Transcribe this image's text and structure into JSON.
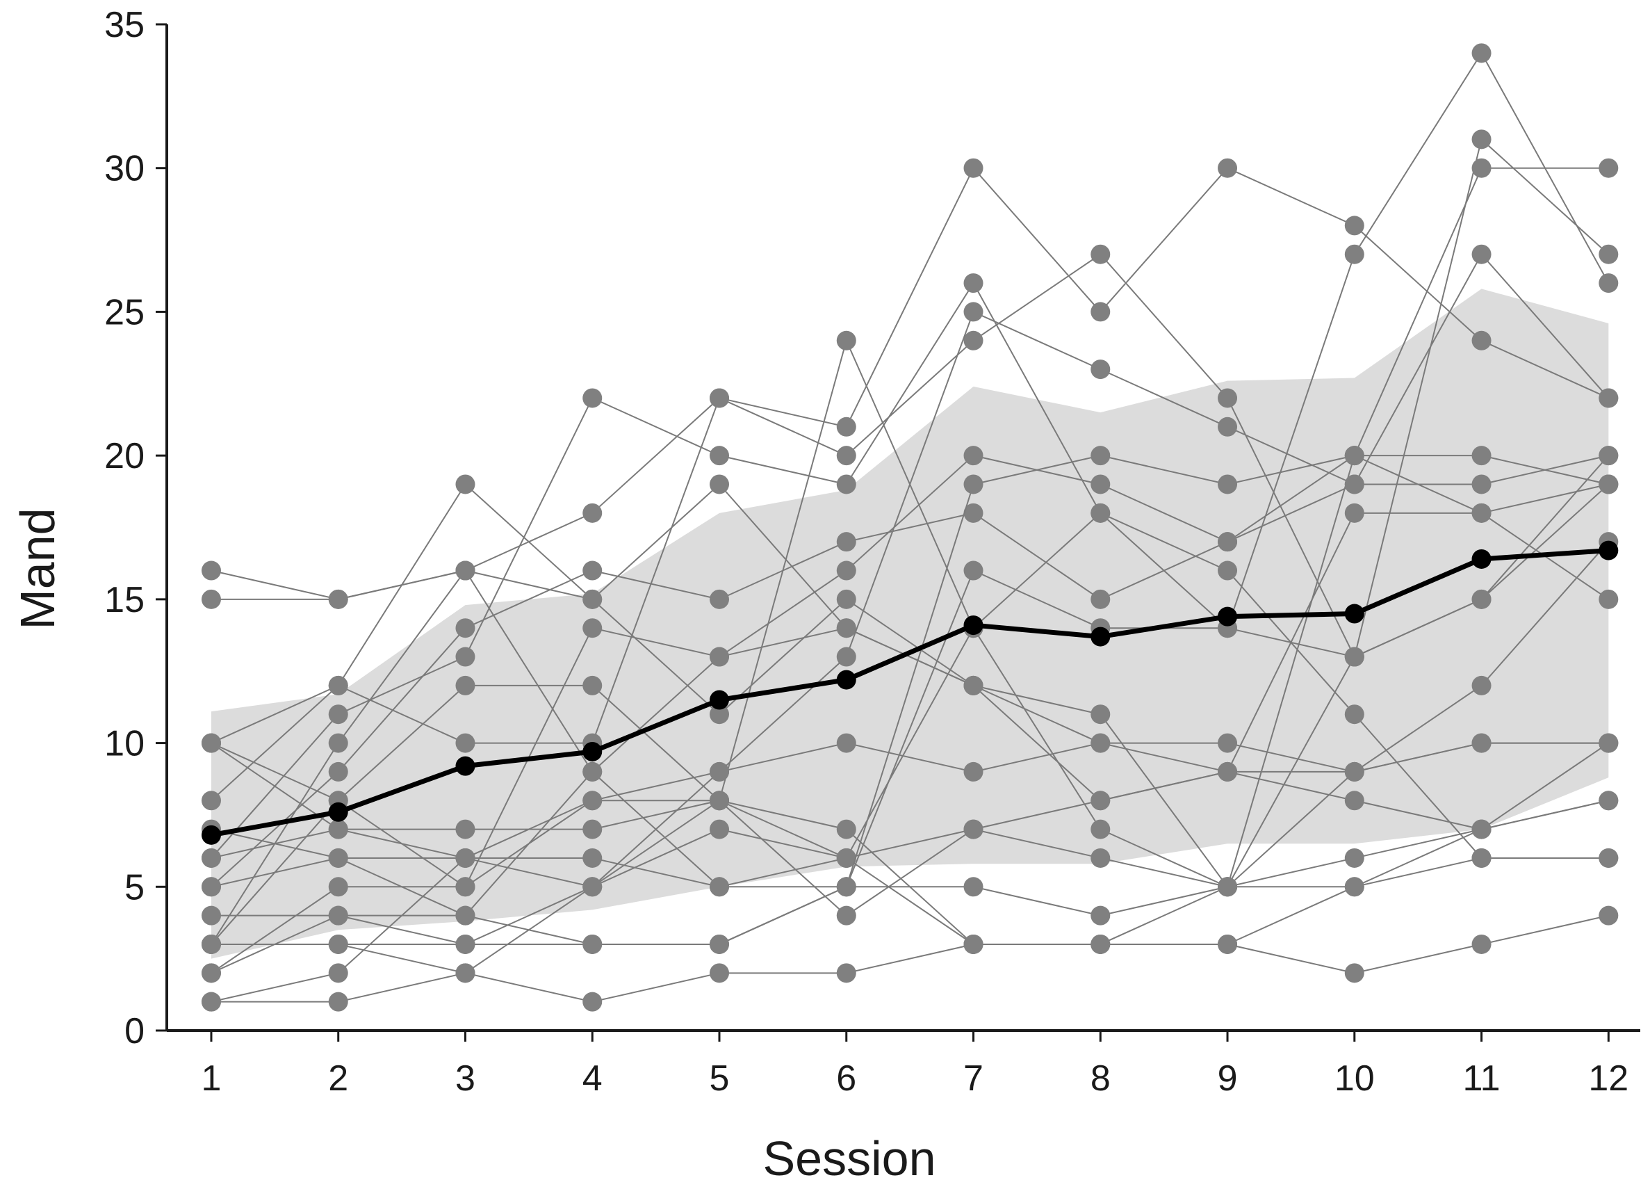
{
  "chart_data": {
    "type": "line",
    "title": "",
    "xlabel": "Session",
    "ylabel": "Mand",
    "x": [
      1,
      2,
      3,
      4,
      5,
      6,
      7,
      8,
      9,
      10,
      11,
      12
    ],
    "xlim": [
      0.65,
      12.25
    ],
    "ylim": [
      0,
      35
    ],
    "yticks": [
      0,
      5,
      10,
      15,
      20,
      25,
      30,
      35
    ],
    "grid": false,
    "legend": "none",
    "colors": {
      "individual": "#808080",
      "individual_line": "#7a7a7a",
      "mean": "#000000",
      "band": "#dcdcdc",
      "axis": "#1a1a1a"
    },
    "band": {
      "lower": [
        2.5,
        3.5,
        3.8,
        4.2,
        5.0,
        5.7,
        5.8,
        5.8,
        6.5,
        6.5,
        7.0,
        8.8
      ],
      "upper": [
        11.1,
        11.7,
        14.8,
        15.2,
        18.0,
        18.8,
        22.4,
        21.5,
        22.6,
        22.7,
        25.8,
        24.6
      ]
    },
    "mean": [
      6.8,
      7.6,
      9.2,
      9.7,
      11.5,
      12.2,
      14.1,
      13.7,
      14.4,
      14.5,
      16.4,
      16.7
    ],
    "series": [
      {
        "values": [
          16,
          15,
          16,
          15,
          11,
          15,
          12,
          8,
          9,
          8,
          7,
          8
        ]
      },
      {
        "values": [
          15,
          15,
          16,
          18,
          22,
          20,
          24,
          27,
          22,
          13,
          15,
          20
        ]
      },
      {
        "values": [
          10,
          12,
          19,
          15,
          19,
          14,
          12,
          11,
          5,
          9,
          10,
          10
        ]
      },
      {
        "values": [
          10,
          8,
          12,
          12,
          8,
          24,
          14,
          7,
          5,
          13,
          31,
          27
        ]
      },
      {
        "values": [
          10,
          7,
          7,
          7,
          8,
          7,
          3,
          3,
          5,
          20,
          20,
          19
        ]
      },
      {
        "values": [
          8,
          12,
          10,
          10,
          22,
          21,
          30,
          25,
          30,
          28,
          24,
          22
        ]
      },
      {
        "values": [
          7,
          6,
          6,
          8,
          8,
          6,
          3,
          3,
          3,
          2,
          3,
          4
        ]
      },
      {
        "values": [
          6,
          11,
          13,
          22,
          20,
          19,
          26,
          18,
          14,
          13,
          15,
          19
        ]
      },
      {
        "values": [
          5,
          9,
          14,
          16,
          15,
          17,
          18,
          15,
          17,
          20,
          18,
          19
        ]
      },
      {
        "values": [
          4,
          4,
          4,
          9,
          13,
          14,
          12,
          10,
          10,
          9,
          12,
          17
        ]
      },
      {
        "values": [
          3,
          10,
          16,
          9,
          5,
          6,
          14,
          18,
          16,
          11,
          6,
          6
        ]
      },
      {
        "values": [
          3,
          8,
          5,
          14,
          13,
          16,
          20,
          19,
          17,
          19,
          27,
          22
        ]
      },
      {
        "values": [
          2,
          5,
          5,
          8,
          9,
          10,
          9,
          10,
          9,
          9,
          10,
          10
        ]
      },
      {
        "values": [
          2,
          4,
          3,
          5,
          9,
          13,
          25,
          23,
          21,
          19,
          19,
          20
        ]
      },
      {
        "values": [
          1,
          2,
          6,
          5,
          8,
          4,
          7,
          8,
          9,
          18,
          18,
          15
        ]
      },
      {
        "values": [
          1,
          1,
          2,
          1,
          2,
          2,
          3,
          3,
          3,
          5,
          7,
          10
        ]
      },
      {
        "values": [
          3,
          3,
          2,
          5,
          7,
          6,
          7,
          6,
          5,
          5,
          6,
          6
        ]
      },
      {
        "values": [
          6,
          7,
          6,
          6,
          5,
          5,
          5,
          4,
          5,
          6,
          7,
          8
        ]
      },
      {
        "values": [
          5,
          6,
          4,
          3,
          3,
          5,
          16,
          14,
          14,
          27,
          34,
          26
        ]
      },
      {
        "values": [
          3,
          3,
          3,
          3,
          3,
          5,
          19,
          20,
          19,
          20,
          30,
          30
        ]
      }
    ]
  }
}
